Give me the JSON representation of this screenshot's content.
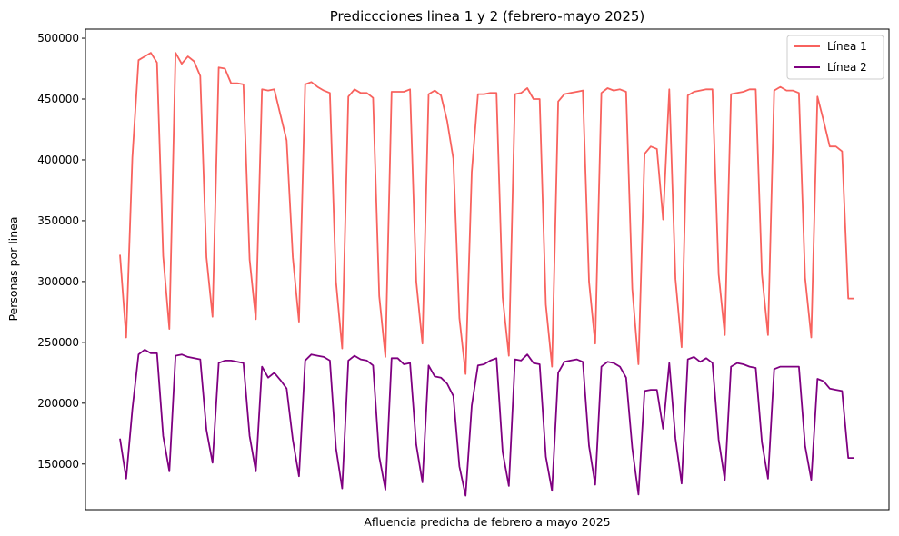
{
  "chart_data": {
    "type": "line",
    "title": "Prediccciones linea 1 y 2 (febrero-mayo 2025)",
    "xlabel": "Afluencia predicha de febrero a mayo 2025",
    "ylabel": "Personas por linea",
    "ylim": [
      112500,
      507500
    ],
    "yticks": [
      150000,
      200000,
      250000,
      300000,
      350000,
      400000,
      450000,
      500000
    ],
    "ytick_labels": [
      "150000",
      "200000",
      "250000",
      "300000",
      "350000",
      "400000",
      "450000",
      "500000"
    ],
    "x_ticks_shown": false,
    "grid": false,
    "legend_position": "top-right",
    "x": [
      1,
      2,
      3,
      4,
      5,
      6,
      7,
      8,
      9,
      10,
      11,
      12,
      13,
      14,
      15,
      16,
      17,
      18,
      19,
      20,
      21,
      22,
      23,
      24,
      25,
      26,
      27,
      28,
      29,
      30,
      31,
      32,
      33,
      34,
      35,
      36,
      37,
      38,
      39,
      40,
      41,
      42,
      43,
      44,
      45,
      46,
      47,
      48,
      49,
      50,
      51,
      52,
      53,
      54,
      55,
      56,
      57,
      58,
      59,
      60,
      61,
      62,
      63,
      64,
      65,
      66,
      67,
      68,
      69,
      70,
      71,
      72,
      73,
      74,
      75,
      76,
      77,
      78,
      79,
      80,
      81,
      82,
      83,
      84,
      85,
      86,
      87,
      88,
      89,
      90,
      91,
      92,
      93,
      94,
      95,
      96,
      97,
      98,
      99,
      100,
      101,
      102,
      103,
      104,
      105,
      106,
      107,
      108,
      109,
      110,
      111,
      112,
      113,
      114,
      115,
      116,
      117,
      118,
      119,
      120
    ],
    "series": [
      {
        "name": "Línea 1",
        "color": "#f8625e",
        "values": [
          322000,
          254000,
          402000,
          482000,
          485000,
          488000,
          480000,
          321000,
          261000,
          488000,
          479000,
          485000,
          481000,
          469000,
          320000,
          271000,
          476000,
          475000,
          463000,
          463000,
          462000,
          318000,
          269000,
          458000,
          457000,
          458000,
          437000,
          416000,
          320000,
          267000,
          462000,
          464000,
          460000,
          457000,
          455000,
          300000,
          245000,
          452000,
          458000,
          455000,
          455000,
          451000,
          288000,
          238000,
          456000,
          456000,
          456000,
          458000,
          300000,
          249000,
          454000,
          457000,
          453000,
          432000,
          401000,
          270000,
          224000,
          390000,
          454000,
          454000,
          455000,
          455000,
          287000,
          239000,
          454000,
          455000,
          459000,
          450000,
          450000,
          281000,
          230000,
          448000,
          454000,
          455000,
          456000,
          457000,
          300000,
          249000,
          455000,
          459000,
          457000,
          458000,
          456000,
          294000,
          232000,
          405000,
          411000,
          409000,
          351000,
          458000,
          302000,
          246000,
          453000,
          456000,
          457000,
          458000,
          458000,
          306000,
          256000,
          454000,
          455000,
          456000,
          458000,
          458000,
          306000,
          256000,
          457000,
          460000,
          457000,
          457000,
          455000,
          303000,
          254000,
          452000,
          432000,
          411000,
          411000,
          407000,
          286000,
          286000
        ]
      },
      {
        "name": "Línea 2",
        "color": "#7f0080",
        "values": [
          171000,
          138000,
          195000,
          240000,
          244000,
          241000,
          241000,
          173000,
          144000,
          239000,
          240000,
          238000,
          237000,
          236000,
          178000,
          151000,
          233000,
          235000,
          235000,
          234000,
          233000,
          173000,
          144000,
          230000,
          221000,
          225000,
          219000,
          212000,
          170000,
          140000,
          235000,
          240000,
          239000,
          238000,
          235000,
          163000,
          130000,
          235000,
          239000,
          236000,
          235000,
          231000,
          156000,
          129000,
          237000,
          237000,
          232000,
          233000,
          166000,
          135000,
          231000,
          222000,
          221000,
          216000,
          206000,
          148000,
          124000,
          198000,
          231000,
          232000,
          235000,
          237000,
          160000,
          132000,
          236000,
          235000,
          240000,
          233000,
          232000,
          156000,
          128000,
          225000,
          234000,
          235000,
          236000,
          234000,
          165000,
          133000,
          230000,
          234000,
          233000,
          230000,
          221000,
          163000,
          125000,
          210000,
          211000,
          211000,
          179000,
          233000,
          171000,
          134000,
          236000,
          238000,
          234000,
          237000,
          233000,
          170000,
          137000,
          230000,
          233000,
          232000,
          230000,
          229000,
          168000,
          138000,
          228000,
          230000,
          230000,
          230000,
          230000,
          165000,
          137000,
          220000,
          218000,
          212000,
          211000,
          210000,
          155000,
          155000
        ]
      }
    ]
  }
}
